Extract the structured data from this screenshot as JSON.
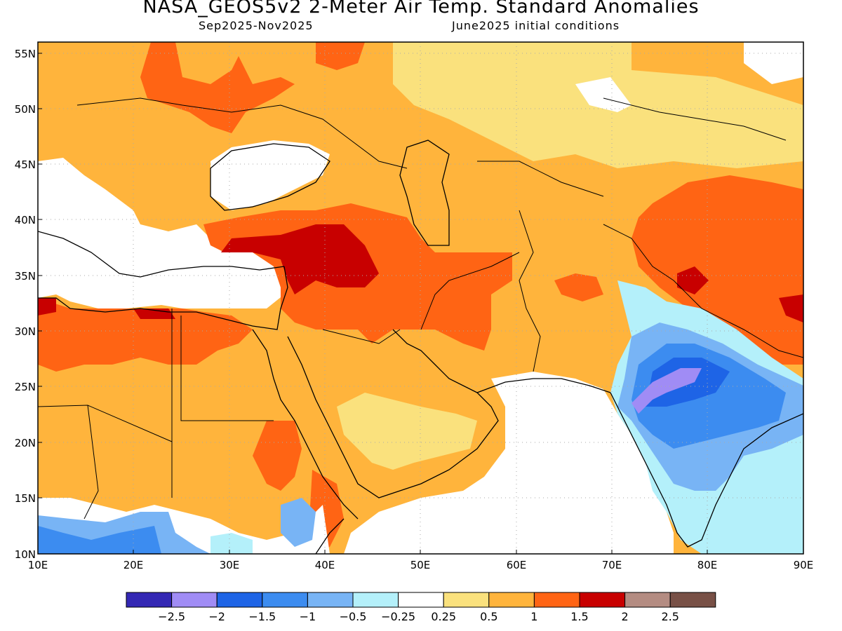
{
  "title": "NASA_GEOS5v2 2-Meter Air Temp. Standard Anomalies",
  "subtitle_left": "Sep2025-Nov2025",
  "subtitle_right": "June2025 initial conditions",
  "lat_labels": [
    "55N",
    "50N",
    "45N",
    "40N",
    "35N",
    "30N",
    "25N",
    "20N",
    "15N",
    "10N"
  ],
  "lon_labels": [
    "10E",
    "20E",
    "30E",
    "40E",
    "50E",
    "60E",
    "70E",
    "80E",
    "90E"
  ],
  "colorbar": {
    "colors": [
      "#3428b4",
      "#a08cf5",
      "#1e64e6",
      "#3c8cf0",
      "#78b4f5",
      "#b4f0fa",
      "#ffffff",
      "#fae17d",
      "#ffb43c",
      "#ff6414",
      "#c80000",
      "#b48c82",
      "#785046"
    ],
    "labels": [
      "-2.5",
      "-2",
      "-1.5",
      "-1",
      "-0.5",
      "-0.25",
      "0.25",
      "0.5",
      "1",
      "1.5",
      "2",
      "2.5"
    ]
  },
  "colors": {
    "white": "#ffffff",
    "yellow": "#fae17d",
    "orange_light": "#ffb43c",
    "orange": "#ff6414",
    "red": "#c80000",
    "blue_pale": "#b4f0fa",
    "blue_light": "#78b4f5",
    "blue": "#3c8cf0",
    "blue_mid": "#1e64e6",
    "purple": "#a08cf5"
  }
}
